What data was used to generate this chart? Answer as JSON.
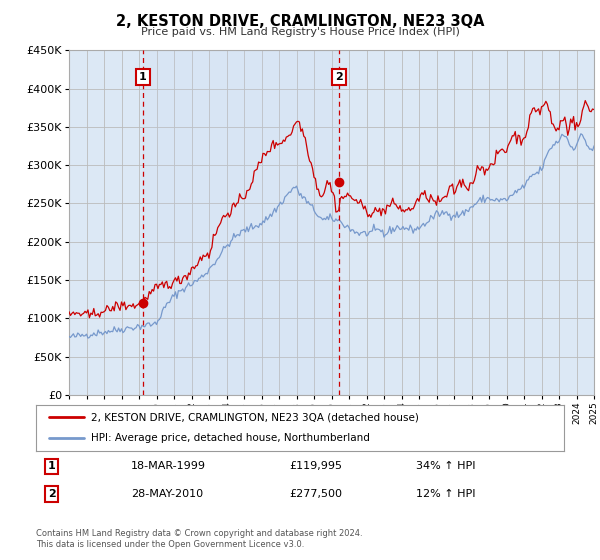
{
  "title": "2, KESTON DRIVE, CRAMLINGTON, NE23 3QA",
  "subtitle": "Price paid vs. HM Land Registry's House Price Index (HPI)",
  "legend_line1": "2, KESTON DRIVE, CRAMLINGTON, NE23 3QA (detached house)",
  "legend_line2": "HPI: Average price, detached house, Northumberland",
  "sale1_date": "18-MAR-1999",
  "sale1_price": 119995,
  "sale1_hpi": "34% ↑ HPI",
  "sale1_x": 1999.21,
  "sale2_date": "28-MAY-2010",
  "sale2_price": 277500,
  "sale2_hpi": "12% ↑ HPI",
  "sale2_x": 2010.41,
  "footnote1": "Contains HM Land Registry data © Crown copyright and database right 2024.",
  "footnote2": "This data is licensed under the Open Government Licence v3.0.",
  "line_color_red": "#cc0000",
  "line_color_blue": "#7799cc",
  "bg_color": "#dce8f5",
  "grid_color": "#bbbbbb",
  "vline_color": "#cc0000",
  "marker_color": "#cc0000",
  "ylim_min": 0,
  "ylim_max": 450000,
  "xlim_min": 1995,
  "xlim_max": 2025
}
